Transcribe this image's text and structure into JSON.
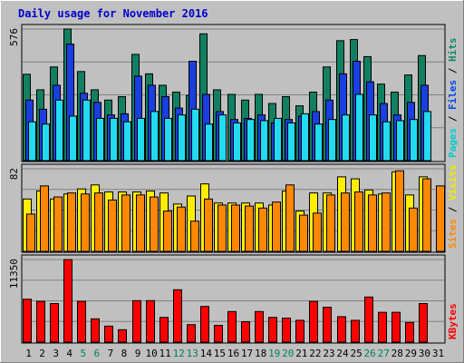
{
  "chart_data": {
    "type": "bar",
    "title": "Daily usage for November 2016",
    "categories": [
      "1",
      "2",
      "3",
      "4",
      "5",
      "6",
      "7",
      "8",
      "9",
      "10",
      "11",
      "12",
      "13",
      "14",
      "15",
      "16",
      "17",
      "18",
      "19",
      "20",
      "21",
      "22",
      "23",
      "24",
      "25",
      "26",
      "27",
      "28",
      "29",
      "30",
      "31"
    ],
    "weekend_days": [
      "5",
      "6",
      "12",
      "13",
      "19",
      "20",
      "26",
      "27"
    ],
    "panels": [
      {
        "name": "hits-files-pages",
        "ymax_label": "576",
        "ylim": [
          0,
          576
        ],
        "grid": true,
        "legend": [
          {
            "text": "Pages",
            "color": "#00cccc"
          },
          {
            "text": " / ",
            "color": "#000000"
          },
          {
            "text": "Files",
            "color": "#0044ee"
          },
          {
            "text": " / ",
            "color": "#000000"
          },
          {
            "text": "Hits",
            "color": "#118866"
          }
        ],
        "series": [
          {
            "name": "Hits",
            "color": "#128060",
            "values": [
              378,
              310,
              410,
              576,
              390,
              310,
              265,
              280,
              465,
              380,
              330,
              300,
              285,
              555,
              310,
              290,
              265,
              290,
              250,
              280,
              240,
              300,
              410,
              525,
              530,
              455,
              335,
              300,
              375,
              460,
              null
            ]
          },
          {
            "name": "Files",
            "color": "#1a3fe0",
            "values": [
              265,
              225,
              330,
              510,
              295,
              255,
              200,
              205,
              370,
              330,
              280,
              230,
              435,
              290,
              215,
              180,
              185,
              200,
              165,
              180,
              195,
              215,
              265,
              380,
              435,
              345,
              250,
              200,
              255,
              330,
              null
            ]
          },
          {
            "name": "Pages",
            "color": "#22dbf0",
            "values": [
              170,
              160,
              265,
              195,
              265,
              185,
              185,
              170,
              185,
              215,
              185,
              200,
              225,
              160,
              200,
              165,
              180,
              175,
              185,
              165,
              205,
              160,
              180,
              200,
              290,
              200,
              170,
              175,
              180,
              215,
              null
            ]
          }
        ]
      },
      {
        "name": "visits-sites",
        "ymax_label": "82",
        "ylim": [
          0,
          82
        ],
        "grid": true,
        "legend": [
          {
            "text": "Sites",
            "color": "#ff8800"
          },
          {
            "text": " / ",
            "color": "#000000"
          },
          {
            "text": "Visits",
            "color": "#eeee00"
          }
        ],
        "series": [
          {
            "name": "Visits",
            "color": "#ffee00",
            "values": [
              52,
              60,
              52,
              57,
              62,
              66,
              59,
              59,
              59,
              60,
              58,
              47,
              55,
              67,
              48,
              48,
              48,
              48,
              46,
              60,
              40,
              58,
              58,
              74,
              72,
              61,
              57,
              79,
              56,
              74,
              null
            ]
          },
          {
            "name": "Sites",
            "color": "#ff8800",
            "values": [
              37,
              65,
              54,
              58,
              57,
              58,
              51,
              56,
              56,
              54,
              40,
              44,
              30,
              52,
              46,
              46,
              45,
              43,
              49,
              66,
              36,
              38,
              56,
              58,
              59,
              56,
              58,
              80,
              43,
              72,
              65
            ]
          }
        ]
      },
      {
        "name": "kbytes",
        "ymax_label": "11350",
        "ylim": [
          0,
          11350
        ],
        "grid": true,
        "legend": [
          {
            "text": "KBytes",
            "color": "#ff0000"
          }
        ],
        "series": [
          {
            "name": "KBytes",
            "color": "#ff0000",
            "values": [
              5900,
              5600,
              5300,
              11350,
              5600,
              3200,
              2200,
              1700,
              5700,
              5700,
              3400,
              7200,
              2400,
              4900,
              2300,
              4200,
              2800,
              4200,
              3400,
              3300,
              3000,
              5600,
              4800,
              3500,
              3000,
              6200,
              4100,
              4100,
              2700,
              5300,
              0
            ]
          }
        ]
      }
    ]
  }
}
